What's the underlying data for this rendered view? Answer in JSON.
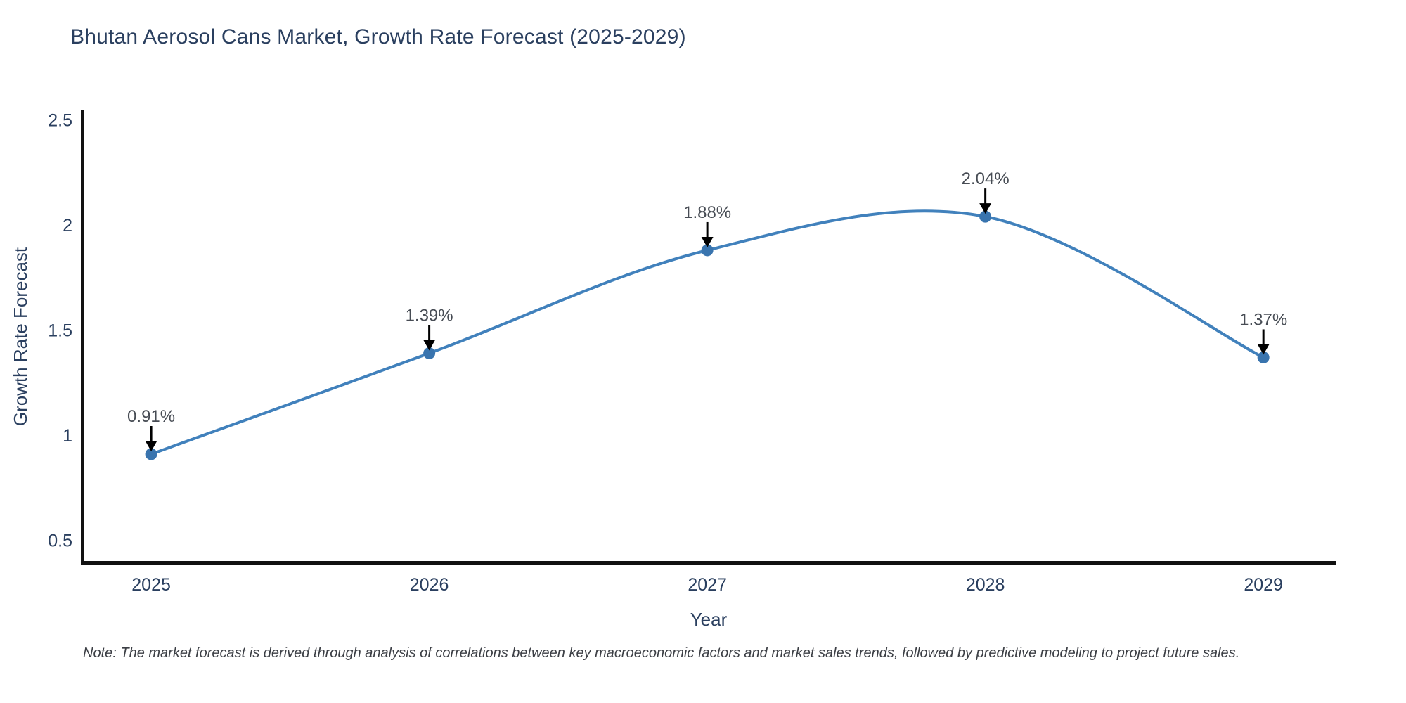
{
  "title": "Bhutan Aerosol Cans Market, Growth Rate Forecast (2025-2029)",
  "note": "Note: The market forecast is derived through analysis of correlations between key macroeconomic factors and market sales trends, followed by predictive modeling to project future sales.",
  "chart_data": {
    "type": "line",
    "title": "Bhutan Aerosol Cans Market, Growth Rate Forecast (2025-2029)",
    "xlabel": "Year",
    "ylabel": "Growth Rate Forecast",
    "x": [
      2025,
      2026,
      2027,
      2028,
      2029
    ],
    "values": [
      0.91,
      1.39,
      1.88,
      2.04,
      1.37
    ],
    "series": [
      {
        "name": "Growth Rate Forecast",
        "values": [
          0.91,
          1.39,
          1.88,
          2.04,
          1.37
        ]
      }
    ],
    "point_labels": [
      "0.91%",
      "1.39%",
      "1.88%",
      "2.04%",
      "1.37%"
    ],
    "line_shape": "spline",
    "markers": true,
    "grid": false,
    "legend_position": "none",
    "xticks": [
      "2025",
      "2026",
      "2027",
      "2028",
      "2029"
    ],
    "yticks": [
      "0.5",
      "1",
      "1.5",
      "2",
      "2.5"
    ],
    "ytick_values": [
      0.5,
      1.0,
      1.5,
      2.0,
      2.5
    ],
    "xlim": [
      2024.752,
      2029.26
    ],
    "ylim": [
      0.395,
      2.542
    ],
    "colors": {
      "line": "#4181bc",
      "marker": "#3974ae",
      "axis_line": "#111111",
      "title_text": "#2a3f5f",
      "tick_text": "#2a3f5f",
      "annotation_text": "#474c54",
      "annotation_arrow": "#000000",
      "note_text": "#3c3f45"
    }
  }
}
